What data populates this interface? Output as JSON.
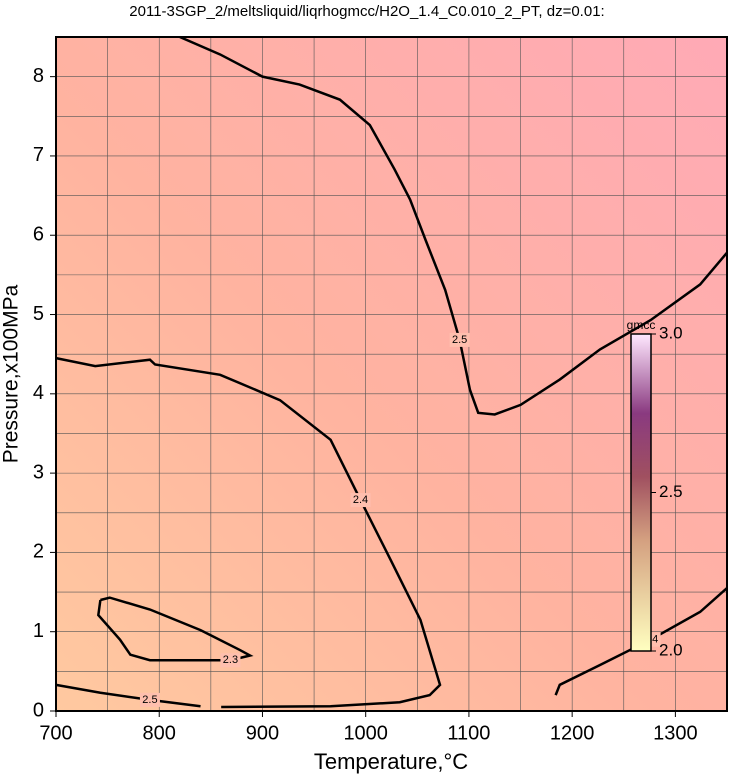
{
  "chart_data": {
    "type": "contour",
    "title": "2011-3SGP_2/meltsliquid/liqrhogmcc/H2O_1.4_C0.010_2_PT, dz=0.01:",
    "x_label": "Temperature,°C",
    "y_label": "Pressure,x100MPa",
    "xlim": [
      700,
      1350
    ],
    "ylim": [
      0,
      8.5
    ],
    "xticks": [
      700,
      800,
      900,
      1000,
      1100,
      1200,
      1300
    ],
    "yticks": [
      0,
      1,
      2,
      3,
      4,
      5,
      6,
      7,
      8
    ],
    "xgrid": [
      750,
      800,
      850,
      900,
      950,
      1000,
      1050,
      1100,
      1150,
      1200,
      1250,
      1300
    ],
    "ygrid": [
      0.5,
      1,
      1.5,
      2,
      2.5,
      3,
      3.5,
      4,
      4.5,
      5,
      5.5,
      6,
      6.5,
      7,
      7.5,
      8
    ],
    "contours": [
      {
        "level": 2.5,
        "x": [
          820,
          859,
          900,
          936,
          975,
          1004,
          1028,
          1043,
          1058,
          1077,
          1091,
          1101,
          1109,
          1125,
          1150,
          1188,
          1227,
          1276,
          1324,
          1350
        ],
        "y": [
          8.5,
          8.28,
          8.0,
          7.9,
          7.71,
          7.39,
          6.83,
          6.45,
          5.94,
          5.31,
          4.68,
          4.05,
          3.76,
          3.74,
          3.86,
          4.18,
          4.56,
          4.93,
          5.38,
          5.78
        ]
      },
      {
        "level": 2.4,
        "x": [
          700,
          738,
          791,
          796,
          859,
          917,
          966,
          995,
          1024,
          1053,
          1072,
          1062,
          1033,
          966,
          860
        ],
        "y": [
          4.45,
          4.35,
          4.43,
          4.37,
          4.24,
          3.92,
          3.42,
          2.66,
          1.91,
          1.15,
          0.33,
          0.2,
          0.11,
          0.06,
          0.05
        ]
      },
      {
        "level": 2.4,
        "x": [
          1184,
          1188,
          1227,
          1276,
          1324,
          1350
        ],
        "y": [
          0.2,
          0.33,
          0.58,
          0.9,
          1.25,
          1.55
        ]
      },
      {
        "level": 2.3,
        "x": [
          743,
          752,
          791,
          840,
          878,
          888,
          869,
          791,
          772,
          762,
          741,
          743
        ],
        "y": [
          1.4,
          1.43,
          1.28,
          1.02,
          0.77,
          0.7,
          0.64,
          0.64,
          0.71,
          0.9,
          1.21,
          1.4
        ]
      },
      {
        "level": 2.5,
        "x": [
          700,
          743,
          791,
          840
        ],
        "y": [
          0.33,
          0.23,
          0.14,
          0.06
        ]
      }
    ],
    "colorbar": {
      "label": "gmcc",
      "lim": [
        2,
        3
      ],
      "ticks": [
        {
          "value": 2,
          "label": "2.0"
        },
        {
          "value": 2.5,
          "label": "2.5"
        },
        {
          "value": 3,
          "label": "3.0"
        }
      ]
    }
  }
}
